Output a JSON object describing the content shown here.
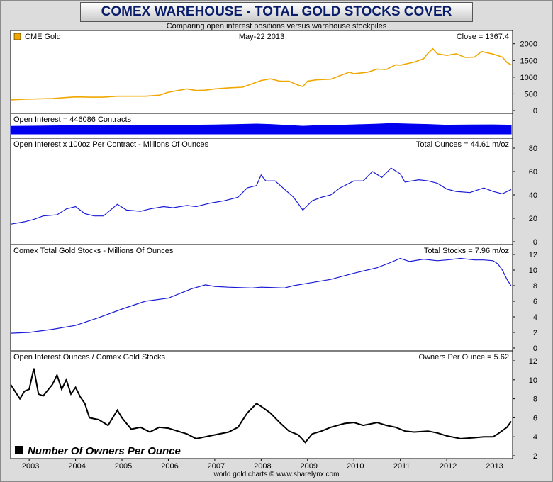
{
  "header": {
    "title": "COMEX WAREHOUSE - TOTAL GOLD STOCKS COVER",
    "subtitle": "Comparing open interest positions versus warehouse stockpiles",
    "footer": "world gold charts © www.sharelynx.com"
  },
  "chart_data": [
    {
      "type": "line",
      "legend": "CME Gold",
      "date_label": "May-22  2013",
      "readout": "Close = 1367.4",
      "color": "#f0a800",
      "ylim": [
        0,
        2100
      ],
      "yticks": [
        0,
        500,
        1000,
        1500,
        2000
      ],
      "points": [
        [
          2002.6,
          320
        ],
        [
          2002.9,
          340
        ],
        [
          2003.2,
          350
        ],
        [
          2003.5,
          360
        ],
        [
          2003.8,
          390
        ],
        [
          2004.0,
          410
        ],
        [
          2004.3,
          400
        ],
        [
          2004.6,
          400
        ],
        [
          2004.9,
          430
        ],
        [
          2005.2,
          430
        ],
        [
          2005.5,
          430
        ],
        [
          2005.8,
          460
        ],
        [
          2006.0,
          550
        ],
        [
          2006.4,
          650
        ],
        [
          2006.6,
          600
        ],
        [
          2006.8,
          610
        ],
        [
          2007.0,
          650
        ],
        [
          2007.3,
          680
        ],
        [
          2007.6,
          700
        ],
        [
          2007.8,
          800
        ],
        [
          2008.0,
          900
        ],
        [
          2008.2,
          950
        ],
        [
          2008.4,
          880
        ],
        [
          2008.6,
          880
        ],
        [
          2008.8,
          760
        ],
        [
          2008.9,
          720
        ],
        [
          2009.0,
          880
        ],
        [
          2009.2,
          920
        ],
        [
          2009.5,
          940
        ],
        [
          2009.9,
          1150
        ],
        [
          2010.0,
          1100
        ],
        [
          2010.3,
          1150
        ],
        [
          2010.5,
          1240
        ],
        [
          2010.7,
          1230
        ],
        [
          2010.9,
          1370
        ],
        [
          2011.0,
          1360
        ],
        [
          2011.3,
          1450
        ],
        [
          2011.5,
          1550
        ],
        [
          2011.6,
          1720
        ],
        [
          2011.7,
          1850
        ],
        [
          2011.8,
          1700
        ],
        [
          2012.0,
          1650
        ],
        [
          2012.2,
          1700
        ],
        [
          2012.4,
          1590
        ],
        [
          2012.6,
          1600
        ],
        [
          2012.75,
          1770
        ],
        [
          2012.9,
          1720
        ],
        [
          2013.0,
          1690
        ],
        [
          2013.2,
          1600
        ],
        [
          2013.3,
          1440
        ],
        [
          2013.39,
          1367.4
        ]
      ]
    },
    {
      "type": "area",
      "readout": "Open Interest = 446086 Contracts",
      "color": "#0000ee",
      "ylim": [
        0,
        700000
      ],
      "points": [
        [
          2002.6,
          330000
        ],
        [
          2003.0,
          350000
        ],
        [
          2003.5,
          380000
        ],
        [
          2004.0,
          400000
        ],
        [
          2004.5,
          400000
        ],
        [
          2005.0,
          410000
        ],
        [
          2005.5,
          400000
        ],
        [
          2006.0,
          420000
        ],
        [
          2006.5,
          450000
        ],
        [
          2007.0,
          470000
        ],
        [
          2007.5,
          520000
        ],
        [
          2007.9,
          560000
        ],
        [
          2008.2,
          520000
        ],
        [
          2008.6,
          420000
        ],
        [
          2008.9,
          340000
        ],
        [
          2009.2,
          400000
        ],
        [
          2009.6,
          430000
        ],
        [
          2010.0,
          480000
        ],
        [
          2010.5,
          550000
        ],
        [
          2010.8,
          610000
        ],
        [
          2011.2,
          560000
        ],
        [
          2011.6,
          520000
        ],
        [
          2012.0,
          450000
        ],
        [
          2012.5,
          470000
        ],
        [
          2013.0,
          480000
        ],
        [
          2013.39,
          446086
        ]
      ]
    },
    {
      "type": "line",
      "title": "Open Interest x 100oz Per Contract - Millions Of Ounces",
      "readout": "Total Ounces = 44.61 m/oz",
      "color": "#1a1ad8",
      "ylim": [
        0,
        80
      ],
      "yticks": [
        0,
        20,
        40,
        60,
        80
      ],
      "points": [
        [
          2002.6,
          15
        ],
        [
          2002.9,
          17
        ],
        [
          2003.1,
          19
        ],
        [
          2003.3,
          22
        ],
        [
          2003.6,
          23
        ],
        [
          2003.8,
          28
        ],
        [
          2004.0,
          30
        ],
        [
          2004.2,
          24
        ],
        [
          2004.4,
          22
        ],
        [
          2004.6,
          22
        ],
        [
          2004.9,
          32
        ],
        [
          2005.1,
          27
        ],
        [
          2005.4,
          26
        ],
        [
          2005.6,
          28
        ],
        [
          2005.9,
          30
        ],
        [
          2006.1,
          29
        ],
        [
          2006.4,
          31
        ],
        [
          2006.6,
          30
        ],
        [
          2006.9,
          33
        ],
        [
          2007.2,
          35
        ],
        [
          2007.5,
          38
        ],
        [
          2007.7,
          46
        ],
        [
          2007.9,
          48
        ],
        [
          2008.0,
          57
        ],
        [
          2008.1,
          52
        ],
        [
          2008.3,
          52
        ],
        [
          2008.5,
          45
        ],
        [
          2008.7,
          38
        ],
        [
          2008.9,
          27
        ],
        [
          2009.1,
          35
        ],
        [
          2009.3,
          38
        ],
        [
          2009.5,
          40
        ],
        [
          2009.7,
          46
        ],
        [
          2010.0,
          52
        ],
        [
          2010.2,
          52
        ],
        [
          2010.4,
          60
        ],
        [
          2010.6,
          55
        ],
        [
          2010.8,
          63
        ],
        [
          2011.0,
          58
        ],
        [
          2011.1,
          51
        ],
        [
          2011.4,
          53
        ],
        [
          2011.6,
          52
        ],
        [
          2011.8,
          50
        ],
        [
          2012.0,
          45
        ],
        [
          2012.2,
          43
        ],
        [
          2012.5,
          42
        ],
        [
          2012.8,
          46
        ],
        [
          2013.0,
          43
        ],
        [
          2013.2,
          41
        ],
        [
          2013.39,
          44.61
        ]
      ]
    },
    {
      "type": "line",
      "title": "Comex Total Gold Stocks - Millions Of Ounces",
      "readout": "Total Stocks = 7.96 m/oz",
      "color": "#1a1ad8",
      "ylim": [
        0,
        12
      ],
      "yticks": [
        0,
        2,
        4,
        6,
        8,
        10,
        12
      ],
      "points": [
        [
          2002.6,
          1.9
        ],
        [
          2003.0,
          2.0
        ],
        [
          2003.5,
          2.4
        ],
        [
          2004.0,
          2.9
        ],
        [
          2004.5,
          3.9
        ],
        [
          2005.0,
          5.0
        ],
        [
          2005.5,
          6.0
        ],
        [
          2006.0,
          6.4
        ],
        [
          2006.5,
          7.6
        ],
        [
          2006.8,
          8.1
        ],
        [
          2007.0,
          7.9
        ],
        [
          2007.3,
          7.8
        ],
        [
          2007.8,
          7.7
        ],
        [
          2008.0,
          7.8
        ],
        [
          2008.5,
          7.7
        ],
        [
          2008.7,
          8.0
        ],
        [
          2009.0,
          8.3
        ],
        [
          2009.5,
          8.8
        ],
        [
          2010.0,
          9.6
        ],
        [
          2010.5,
          10.3
        ],
        [
          2010.8,
          11.0
        ],
        [
          2011.0,
          11.5
        ],
        [
          2011.2,
          11.1
        ],
        [
          2011.5,
          11.4
        ],
        [
          2011.8,
          11.2
        ],
        [
          2012.0,
          11.3
        ],
        [
          2012.3,
          11.5
        ],
        [
          2012.6,
          11.3
        ],
        [
          2012.8,
          11.3
        ],
        [
          2013.0,
          11.2
        ],
        [
          2013.1,
          10.8
        ],
        [
          2013.2,
          10.0
        ],
        [
          2013.3,
          8.8
        ],
        [
          2013.39,
          7.96
        ]
      ]
    },
    {
      "type": "line",
      "title": "Open Interest Ounces / Comex Gold Stocks",
      "readout": "Owners Per Ounce = 5.62",
      "legend": "Number Of Owners Per Ounce",
      "color": "#000000",
      "ylim": [
        2,
        12
      ],
      "yticks": [
        2,
        4,
        6,
        8,
        10,
        12
      ],
      "points": [
        [
          2002.6,
          9.5
        ],
        [
          2002.8,
          8.0
        ],
        [
          2002.9,
          8.8
        ],
        [
          2003.0,
          9.0
        ],
        [
          2003.1,
          11.2
        ],
        [
          2003.2,
          8.5
        ],
        [
          2003.3,
          8.3
        ],
        [
          2003.5,
          9.5
        ],
        [
          2003.6,
          10.5
        ],
        [
          2003.7,
          9.0
        ],
        [
          2003.8,
          10.0
        ],
        [
          2003.9,
          8.5
        ],
        [
          2004.0,
          9.2
        ],
        [
          2004.1,
          8.2
        ],
        [
          2004.2,
          7.5
        ],
        [
          2004.3,
          6.0
        ],
        [
          2004.5,
          5.8
        ],
        [
          2004.7,
          5.2
        ],
        [
          2004.8,
          6.0
        ],
        [
          2004.9,
          6.8
        ],
        [
          2005.0,
          6.0
        ],
        [
          2005.2,
          4.8
        ],
        [
          2005.4,
          5.0
        ],
        [
          2005.6,
          4.5
        ],
        [
          2005.8,
          5.0
        ],
        [
          2006.0,
          4.9
        ],
        [
          2006.2,
          4.6
        ],
        [
          2006.4,
          4.3
        ],
        [
          2006.6,
          3.8
        ],
        [
          2006.8,
          4.0
        ],
        [
          2007.0,
          4.2
        ],
        [
          2007.3,
          4.5
        ],
        [
          2007.5,
          5.0
        ],
        [
          2007.7,
          6.5
        ],
        [
          2007.9,
          7.5
        ],
        [
          2008.0,
          7.2
        ],
        [
          2008.2,
          6.5
        ],
        [
          2008.4,
          5.5
        ],
        [
          2008.6,
          4.6
        ],
        [
          2008.8,
          4.2
        ],
        [
          2008.95,
          3.4
        ],
        [
          2009.1,
          4.3
        ],
        [
          2009.3,
          4.6
        ],
        [
          2009.5,
          5.0
        ],
        [
          2009.8,
          5.4
        ],
        [
          2010.0,
          5.5
        ],
        [
          2010.2,
          5.2
        ],
        [
          2010.5,
          5.5
        ],
        [
          2010.7,
          5.2
        ],
        [
          2010.9,
          5.0
        ],
        [
          2011.1,
          4.6
        ],
        [
          2011.3,
          4.5
        ],
        [
          2011.6,
          4.6
        ],
        [
          2011.8,
          4.4
        ],
        [
          2012.0,
          4.1
        ],
        [
          2012.3,
          3.8
        ],
        [
          2012.6,
          3.9
        ],
        [
          2012.8,
          4.0
        ],
        [
          2013.0,
          4.0
        ],
        [
          2013.1,
          4.3
        ],
        [
          2013.3,
          5.0
        ],
        [
          2013.39,
          5.62
        ]
      ]
    }
  ],
  "x_axis": {
    "years": [
      "2003",
      "2004",
      "2005",
      "2006",
      "2007",
      "2008",
      "2009",
      "2010",
      "2011",
      "2012",
      "2013"
    ],
    "xlim": [
      2002.6,
      2013.42
    ]
  }
}
